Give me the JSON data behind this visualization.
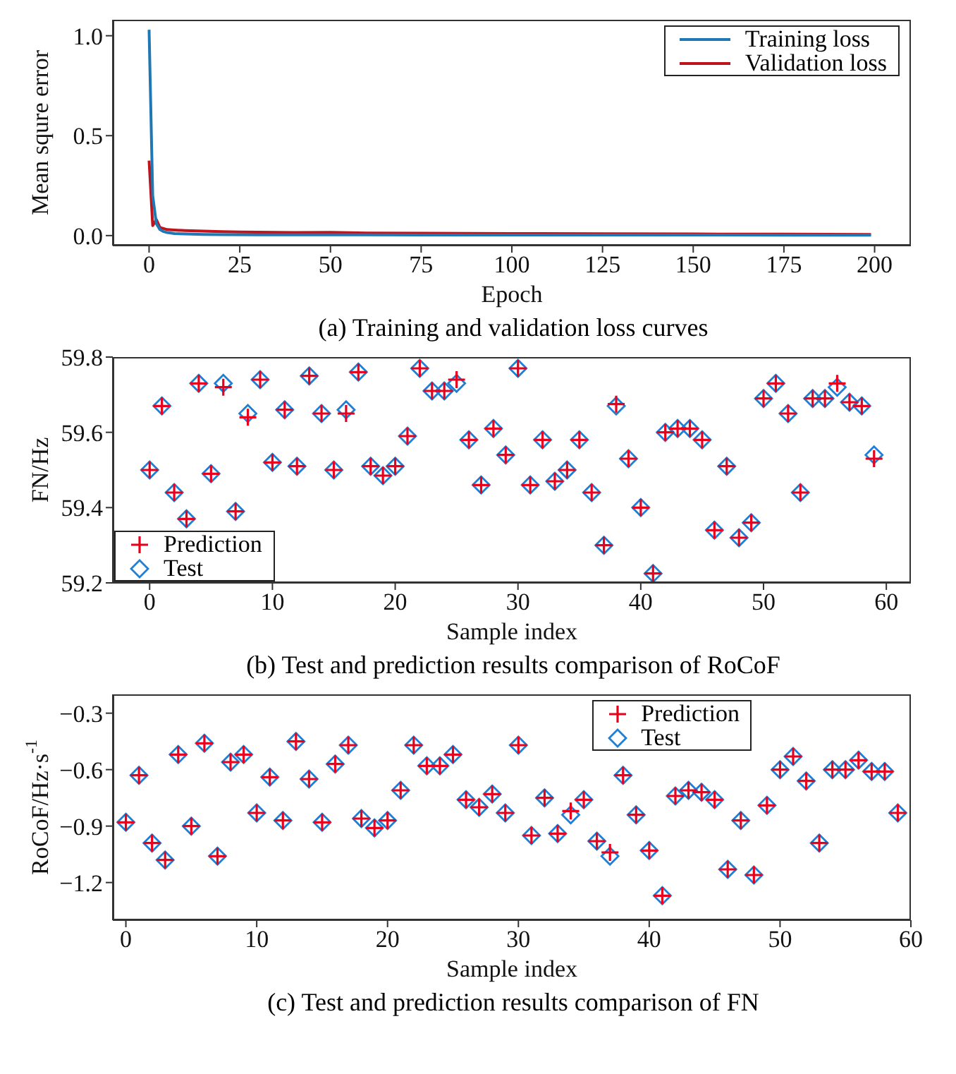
{
  "chart_data": [
    {
      "type": "line",
      "xlabel": "Epoch",
      "ylabel": "Mean squre error",
      "annotations": [
        "(a) Training and validation loss curves"
      ],
      "xlim": [
        -10,
        210
      ],
      "ylim": [
        -0.05,
        1.08
      ],
      "xticks": [
        0,
        25,
        50,
        75,
        100,
        125,
        150,
        175,
        200
      ],
      "yticks": [
        {
          "value": 0,
          "label": "0.0"
        },
        {
          "value": 0.5,
          "label": "0.5"
        },
        {
          "value": 1,
          "label": "1.0"
        }
      ],
      "legend": "top right",
      "marker": "none",
      "line_style": "solid",
      "series": [
        {
          "name": "Training loss",
          "color": "#1f77b4",
          "x": [
            0,
            1,
            2,
            3,
            4,
            5,
            7,
            10,
            15,
            20,
            30,
            50,
            75,
            100,
            125,
            150,
            175,
            199
          ],
          "values": [
            1.03,
            0.2,
            0.06,
            0.03,
            0.02,
            0.015,
            0.01,
            0.008,
            0.006,
            0.005,
            0.004,
            0.004,
            0.003,
            0.003,
            0.003,
            0.003,
            0.002,
            0.002
          ]
        },
        {
          "name": "Validation loss",
          "color": "#c0141c",
          "x": [
            0,
            1,
            2,
            3,
            4,
            5,
            7,
            10,
            15,
            20,
            25,
            30,
            40,
            50,
            60,
            75,
            100,
            125,
            150,
            175,
            199
          ],
          "values": [
            0.375,
            0.05,
            0.08,
            0.04,
            0.035,
            0.03,
            0.028,
            0.025,
            0.022,
            0.02,
            0.018,
            0.017,
            0.015,
            0.016,
            0.013,
            0.012,
            0.01,
            0.009,
            0.008,
            0.007,
            0.006
          ]
        }
      ]
    },
    {
      "type": "scatter",
      "xlabel": "Sample index",
      "ylabel": "FN/Hz",
      "annotations": [
        "(b) Test and prediction results comparison of RoCoF"
      ],
      "xlim": [
        -3,
        62
      ],
      "ylim": [
        59.2,
        59.8
      ],
      "xticks": [
        0,
        10,
        20,
        30,
        40,
        50,
        60
      ],
      "yticks": [
        59.2,
        59.4,
        59.6,
        59.8
      ],
      "legend": "bottom left",
      "x": [
        0,
        1,
        2,
        3,
        4,
        5,
        6,
        7,
        8,
        9,
        10,
        11,
        12,
        13,
        14,
        15,
        16,
        17,
        18,
        19,
        20,
        21,
        22,
        23,
        24,
        25,
        26,
        27,
        28,
        29,
        30,
        31,
        32,
        33,
        34,
        35,
        36,
        37,
        38,
        39,
        40,
        41,
        42,
        43,
        44,
        45,
        46,
        47,
        48,
        49,
        50,
        51,
        52,
        53,
        54,
        55,
        56,
        57,
        58,
        59
      ],
      "series": [
        {
          "name": "Prediction",
          "color": "#e8001c",
          "marker": "cross",
          "values": [
            59.5,
            59.67,
            59.44,
            59.37,
            59.73,
            59.49,
            59.72,
            59.39,
            59.64,
            59.74,
            59.52,
            59.66,
            59.51,
            59.75,
            59.65,
            59.5,
            59.65,
            59.76,
            59.51,
            59.485,
            59.51,
            59.59,
            59.77,
            59.71,
            59.71,
            59.74,
            59.58,
            59.46,
            59.61,
            59.54,
            59.77,
            59.46,
            59.58,
            59.47,
            59.5,
            59.58,
            59.44,
            59.3,
            59.675,
            59.53,
            59.4,
            59.225,
            59.6,
            59.61,
            59.61,
            59.58,
            59.34,
            59.51,
            59.32,
            59.36,
            59.69,
            59.73,
            59.65,
            59.44,
            59.69,
            59.69,
            59.73,
            59.68,
            59.67,
            59.53
          ]
        },
        {
          "name": "Test",
          "color": "#1f7fd4",
          "marker": "diamond",
          "values": [
            59.5,
            59.67,
            59.44,
            59.37,
            59.73,
            59.49,
            59.73,
            59.39,
            59.65,
            59.74,
            59.52,
            59.66,
            59.51,
            59.75,
            59.65,
            59.5,
            59.66,
            59.76,
            59.51,
            59.485,
            59.51,
            59.59,
            59.77,
            59.71,
            59.71,
            59.73,
            59.58,
            59.46,
            59.61,
            59.54,
            59.77,
            59.46,
            59.58,
            59.47,
            59.5,
            59.58,
            59.44,
            59.3,
            59.67,
            59.53,
            59.4,
            59.225,
            59.6,
            59.61,
            59.61,
            59.58,
            59.34,
            59.51,
            59.32,
            59.36,
            59.69,
            59.73,
            59.65,
            59.44,
            59.69,
            59.69,
            59.72,
            59.68,
            59.67,
            59.54
          ]
        }
      ]
    },
    {
      "type": "scatter",
      "xlabel": "Sample index",
      "ylabel": "RoCoF/Hz·s$^{-1}$",
      "annotations": [
        "(c) Test and prediction results comparison of FN"
      ],
      "xlim": [
        -1,
        60
      ],
      "ylim": [
        -1.4,
        -0.2
      ],
      "xticks": [
        0,
        10,
        20,
        30,
        40,
        50,
        60
      ],
      "yticks": [
        {
          "value": -1.2,
          "label": "−1.2"
        },
        {
          "value": -0.9,
          "label": "−0.9"
        },
        {
          "value": -0.6,
          "label": "−0.6"
        },
        {
          "value": -0.3,
          "label": "−0.3"
        }
      ],
      "legend": "top",
      "x": [
        0,
        1,
        2,
        3,
        4,
        5,
        6,
        7,
        8,
        9,
        10,
        11,
        12,
        13,
        14,
        15,
        16,
        17,
        18,
        19,
        20,
        21,
        22,
        23,
        24,
        25,
        26,
        27,
        28,
        29,
        30,
        31,
        32,
        33,
        34,
        35,
        36,
        37,
        38,
        39,
        40,
        41,
        42,
        43,
        44,
        45,
        46,
        47,
        48,
        49,
        50,
        51,
        52,
        53,
        54,
        55,
        56,
        57,
        58,
        59
      ],
      "series": [
        {
          "name": "Prediction",
          "color": "#e8001c",
          "marker": "cross",
          "values": [
            -0.88,
            -0.63,
            -0.99,
            -1.08,
            -0.52,
            -0.9,
            -0.46,
            -1.06,
            -0.56,
            -0.52,
            -0.83,
            -0.64,
            -0.87,
            -0.45,
            -0.65,
            -0.88,
            -0.57,
            -0.47,
            -0.86,
            -0.91,
            -0.87,
            -0.71,
            -0.47,
            -0.58,
            -0.58,
            -0.52,
            -0.76,
            -0.8,
            -0.73,
            -0.83,
            -0.47,
            -0.95,
            -0.75,
            -0.94,
            -0.82,
            -0.76,
            -0.98,
            -1.04,
            -0.63,
            -0.84,
            -1.03,
            -1.27,
            -0.74,
            -0.71,
            -0.72,
            -0.76,
            -1.13,
            -0.87,
            -1.16,
            -0.79,
            -0.6,
            -0.53,
            -0.66,
            -0.99,
            -0.6,
            -0.6,
            -0.55,
            -0.61,
            -0.61,
            -0.83
          ]
        },
        {
          "name": "Test",
          "color": "#1f7fd4",
          "marker": "diamond",
          "values": [
            -0.88,
            -0.63,
            -0.99,
            -1.08,
            -0.52,
            -0.9,
            -0.46,
            -1.06,
            -0.56,
            -0.52,
            -0.83,
            -0.64,
            -0.87,
            -0.45,
            -0.65,
            -0.88,
            -0.57,
            -0.47,
            -0.86,
            -0.91,
            -0.87,
            -0.71,
            -0.47,
            -0.58,
            -0.58,
            -0.52,
            -0.76,
            -0.8,
            -0.73,
            -0.83,
            -0.47,
            -0.95,
            -0.75,
            -0.94,
            -0.84,
            -0.76,
            -0.98,
            -1.06,
            -0.63,
            -0.84,
            -1.03,
            -1.27,
            -0.74,
            -0.71,
            -0.72,
            -0.76,
            -1.13,
            -0.87,
            -1.16,
            -0.79,
            -0.6,
            -0.53,
            -0.66,
            -0.99,
            -0.6,
            -0.6,
            -0.55,
            -0.61,
            -0.61,
            -0.83
          ]
        }
      ]
    }
  ]
}
